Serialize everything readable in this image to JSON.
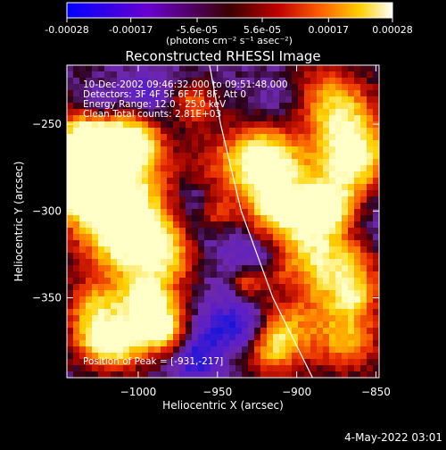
{
  "chart_data": {
    "type": "heatmap",
    "title": "Reconstructed RHESSI Image",
    "xlabel": "Heliocentric X (arcsec)",
    "ylabel": "Heliocentric Y (arcsec)",
    "xlim": [
      -1045,
      -848
    ],
    "ylim": [
      -396,
      -216
    ],
    "xticks": [
      -1000,
      -950,
      -900,
      -850
    ],
    "yticks": [
      -250,
      -300,
      -350
    ],
    "colorbar": {
      "colormap": "blue-purple-red-orange-yellow-white",
      "range": [
        -0.00028,
        0.00028
      ],
      "ticks": [
        "-0.00028",
        "-0.00017",
        "-5.6e-05",
        "5.6e-05",
        "0.00017",
        "0.00028"
      ],
      "tick_values": [
        -0.00028,
        -0.00017,
        -5.6e-05,
        5.6e-05,
        0.00017,
        0.00028
      ],
      "unit_label": "(photons cm⁻² s⁻¹ asec⁻²)"
    },
    "info_lines": [
      "10-Dec-2002 09:46:32.000 to 09:51:48.000",
      "Detectors: 3F 4F 5F 6F 7F 8F, Att 0",
      "Energy Range: 12.0 - 25.0 keV",
      "Clean    Total counts: 2.81E+03"
    ],
    "peak_text": "Position of Peak = [-931,-217]",
    "peak_position": [
      -931,
      -217
    ],
    "limb_curve": [
      [
        -955,
        -216
      ],
      [
        -948,
        -250
      ],
      [
        -935,
        -300
      ],
      [
        -915,
        -350
      ],
      [
        -890,
        -396
      ]
    ],
    "timestamp": "4-May-2022 03:01",
    "grid": false,
    "colors": {
      "limb": "#ffffff",
      "background": "#000000"
    }
  }
}
